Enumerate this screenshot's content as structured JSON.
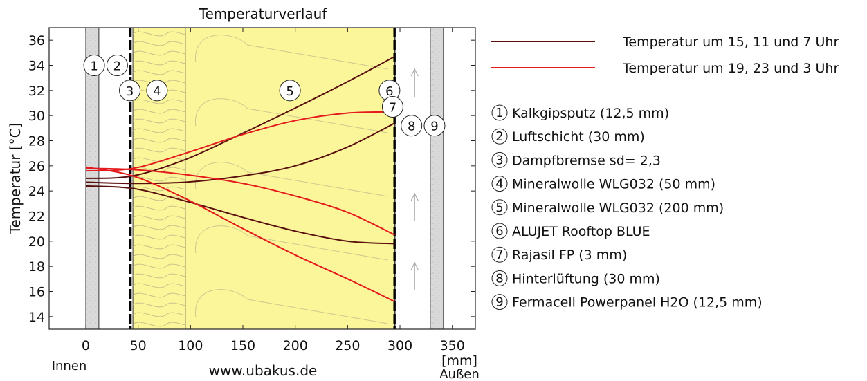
{
  "chart_data": {
    "type": "line",
    "title": "Temperaturverlauf",
    "xlabel": "[mm]",
    "ylabel": "Temperatur [°C]",
    "xlim": [
      -35,
      372
    ],
    "ylim": [
      13,
      37
    ],
    "x_ticks": [
      0,
      50,
      100,
      150,
      200,
      250,
      300,
      350
    ],
    "y_ticks": [
      14,
      16,
      18,
      20,
      22,
      24,
      26,
      28,
      30,
      32,
      34,
      36
    ],
    "grid": false,
    "legend_position": "right",
    "inside_label": "Innen",
    "outside_label": "Außen",
    "watermark": "www.ubakus.de",
    "layer_boundaries": [
      0,
      12.5,
      42.5,
      45,
      95,
      295,
      296,
      299,
      329,
      341.5
    ],
    "layer_fills": {
      "plaster": "#d9d9d9",
      "insulation": "#fbf69a",
      "foil": "#000000",
      "air": "#ffffff"
    },
    "layers": [
      {
        "number": "1",
        "name": "Kalkgipsputz (12,5 mm)"
      },
      {
        "number": "2",
        "name": "Luftschicht (30 mm)"
      },
      {
        "number": "3",
        "name": "Dampfbremse sd= 2,3"
      },
      {
        "number": "4",
        "name": "Mineralwolle WLG032 (50 mm)"
      },
      {
        "number": "5",
        "name": "Mineralwolle WLG032 (200 mm)"
      },
      {
        "number": "6",
        "name": "ALUJET Rooftop BLUE"
      },
      {
        "number": "7",
        "name": "Rajasil FP (3 mm)"
      },
      {
        "number": "8",
        "name": "Hinterlüftung (30 mm)"
      },
      {
        "number": "9",
        "name": "Fermacell Powerpanel H2O (12,5 mm)"
      }
    ],
    "series": [
      {
        "name": "Temperatur um 15, 11 und 7 Uhr",
        "color": "#5a0f0f",
        "curves": [
          {
            "x": [
              0,
              45,
              95,
              150,
              200,
              250,
              295
            ],
            "y": [
              25.0,
              25.2,
              26.5,
              28.6,
              30.6,
              32.7,
              34.7
            ]
          },
          {
            "x": [
              0,
              45,
              95,
              150,
              200,
              250,
              295
            ],
            "y": [
              24.7,
              24.6,
              24.7,
              25.2,
              26.0,
              27.5,
              29.4
            ]
          },
          {
            "x": [
              0,
              45,
              95,
              150,
              200,
              250,
              295
            ],
            "y": [
              24.4,
              24.2,
              23.2,
              21.9,
              20.8,
              20.0,
              19.8
            ]
          }
        ]
      },
      {
        "name": "Temperatur um 19, 23 und 3 Uhr",
        "color": "#e41a1c",
        "curves": [
          {
            "x": [
              0,
              45,
              95,
              150,
              200,
              250,
              295
            ],
            "y": [
              25.6,
              25.8,
              27.0,
              28.5,
              29.6,
              30.2,
              30.3
            ]
          },
          {
            "x": [
              0,
              45,
              95,
              150,
              200,
              250,
              295
            ],
            "y": [
              25.8,
              25.7,
              25.3,
              24.6,
              23.6,
              22.3,
              20.5
            ]
          },
          {
            "x": [
              0,
              45,
              95,
              150,
              200,
              250,
              295
            ],
            "y": [
              25.9,
              25.2,
              23.4,
              21.0,
              18.9,
              17.0,
              15.2
            ]
          }
        ]
      }
    ]
  }
}
